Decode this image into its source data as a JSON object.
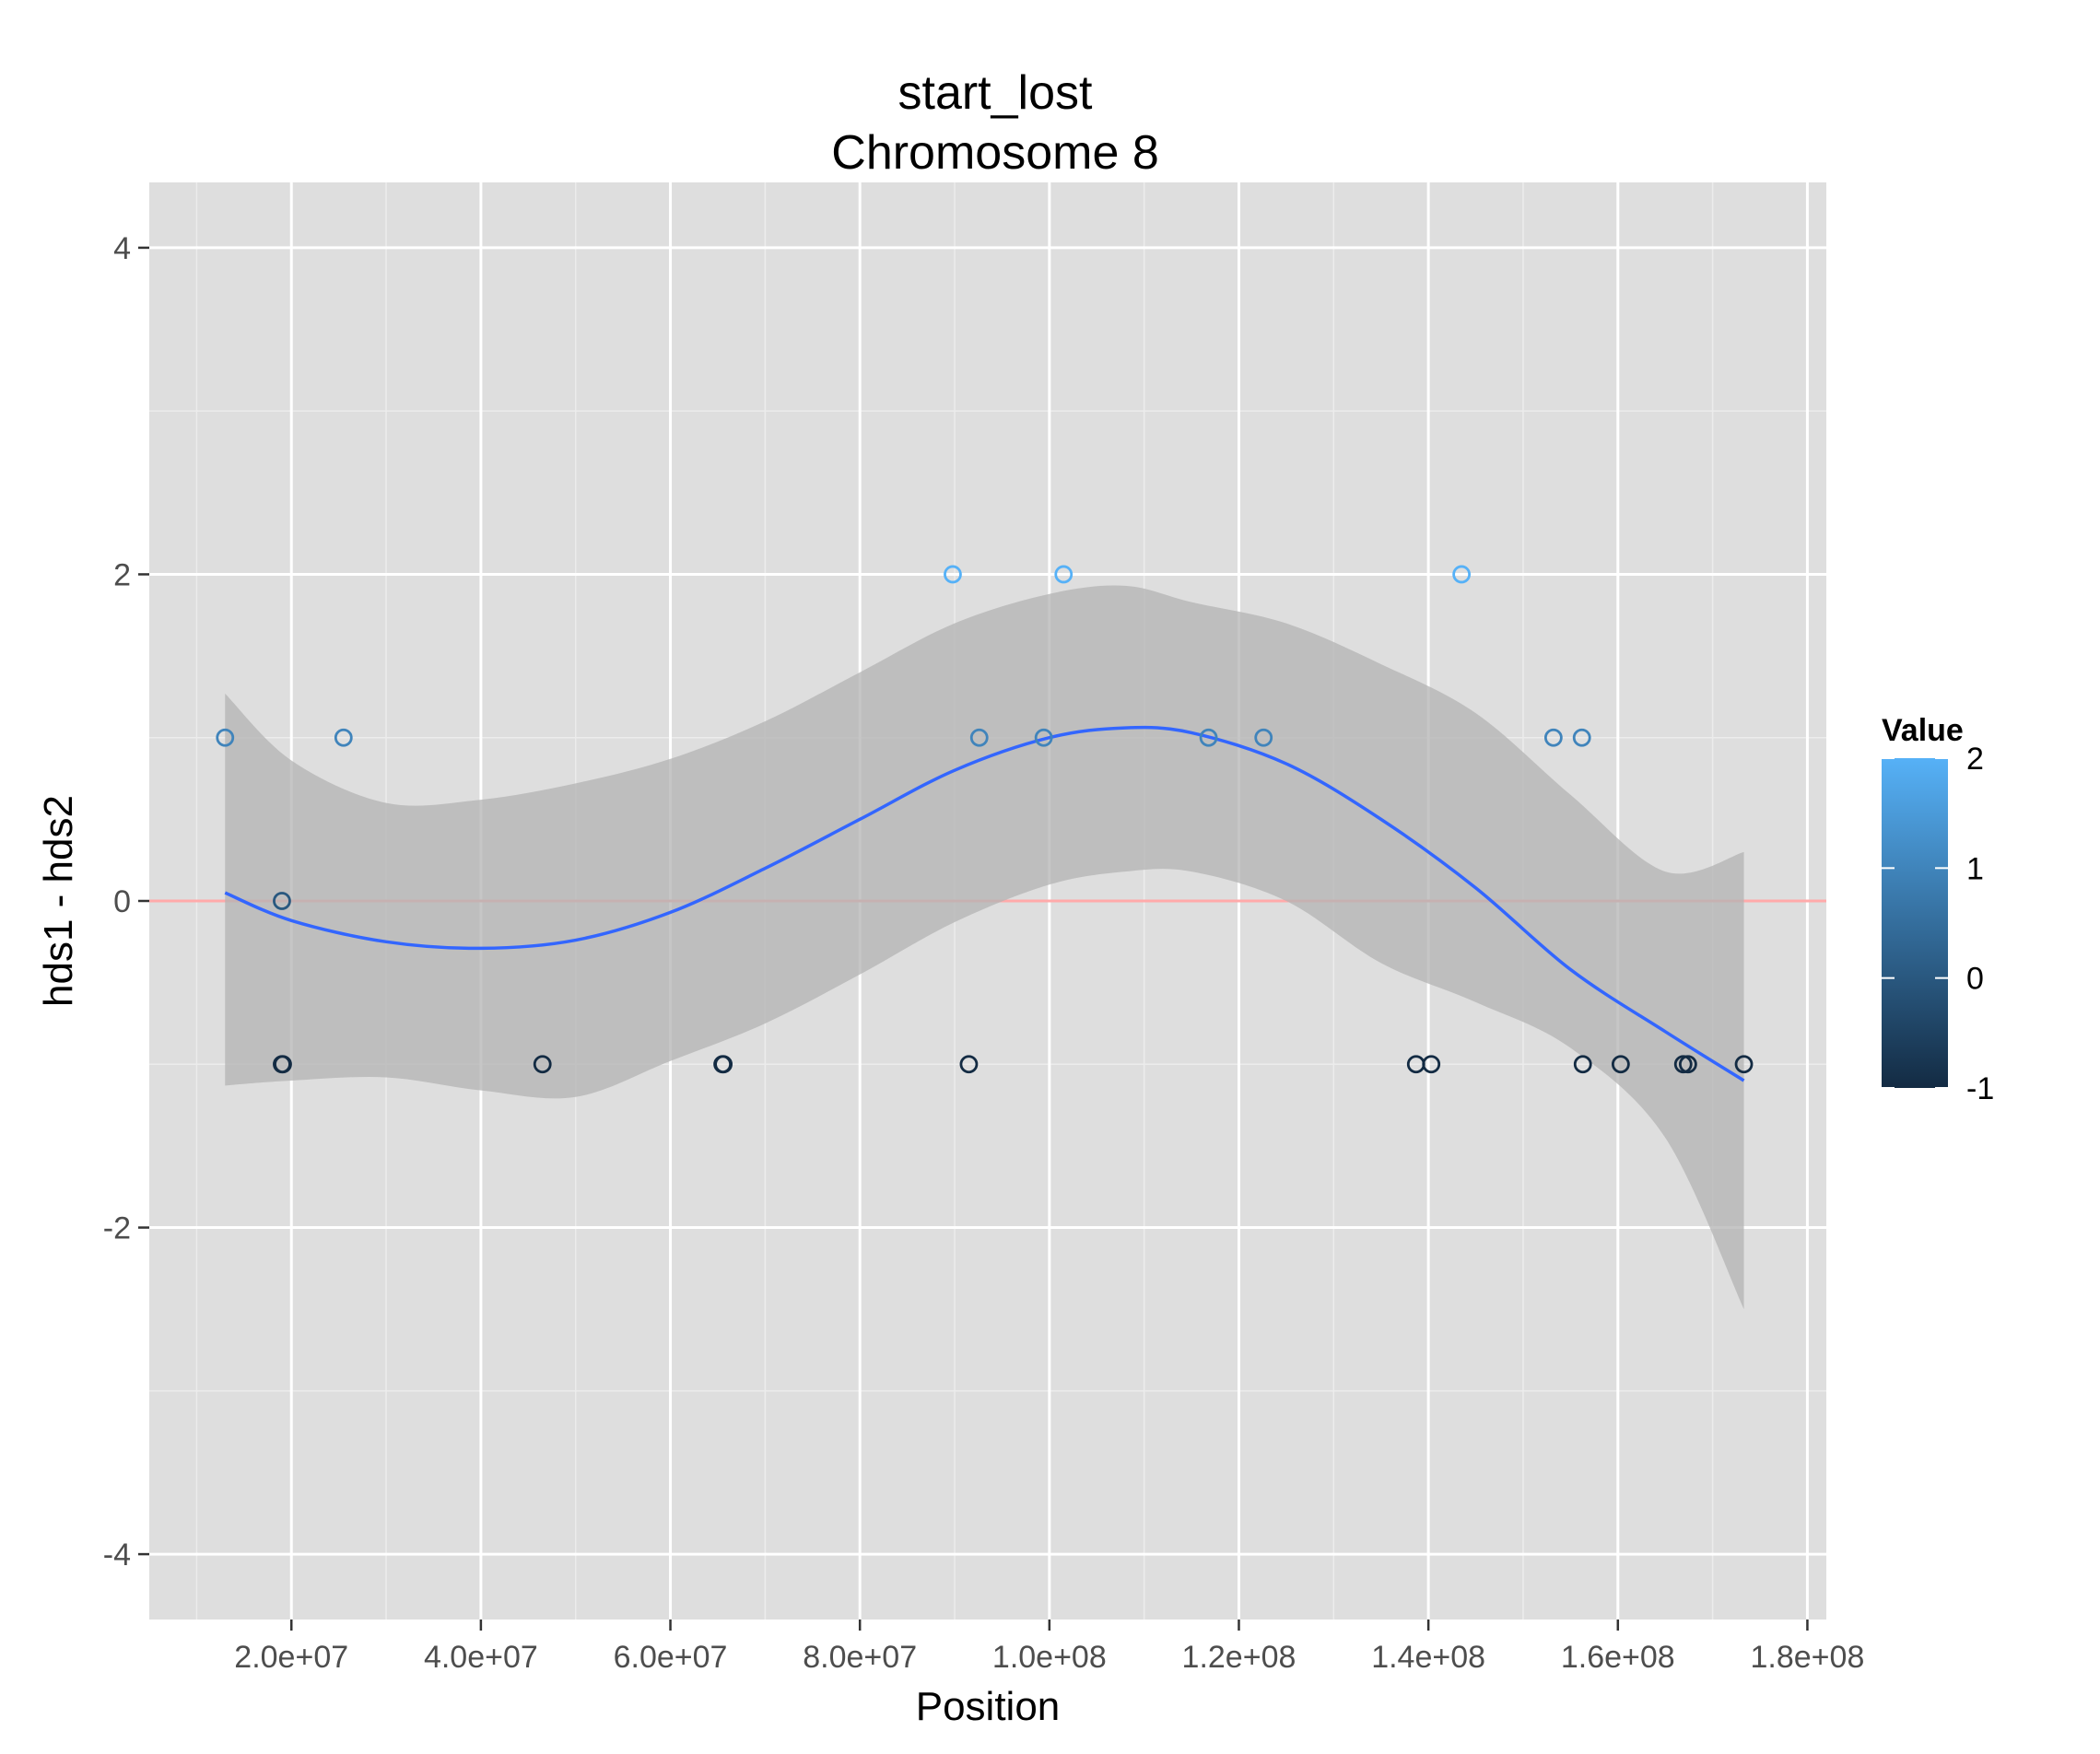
{
  "chart_data": {
    "type": "scatter",
    "title": "start_lost",
    "subtitle": "Chromosome 8",
    "xlabel": "Position",
    "ylabel": "hds1 - hds2",
    "xlim": [
      5000000,
      182000000
    ],
    "ylim": [
      -4.4,
      4.4
    ],
    "x_ticks": [
      20000000,
      40000000,
      60000000,
      80000000,
      100000000,
      120000000,
      140000000,
      160000000,
      180000000
    ],
    "x_tick_labels": [
      "2.0e+07",
      "4.0e+07",
      "6.0e+07",
      "8.0e+07",
      "1.0e+08",
      "1.2e+08",
      "1.4e+08",
      "1.6e+08",
      "1.8e+08"
    ],
    "y_ticks": [
      -4,
      -2,
      0,
      2,
      4
    ],
    "y_tick_labels": [
      "-4",
      "-2",
      "0",
      "2",
      "4"
    ],
    "grid": true,
    "panel_background": "#dedede",
    "reference_line": {
      "y": 0,
      "color": "#ffaaaa"
    },
    "points": [
      {
        "x": 13000000,
        "y": 1
      },
      {
        "x": 19000000,
        "y": 0
      },
      {
        "x": 19000000,
        "y": -1
      },
      {
        "x": 19100000,
        "y": -1
      },
      {
        "x": 25500000,
        "y": 1
      },
      {
        "x": 46500000,
        "y": -1
      },
      {
        "x": 65500000,
        "y": -1
      },
      {
        "x": 65600000,
        "y": -1
      },
      {
        "x": 89800000,
        "y": 2
      },
      {
        "x": 91500000,
        "y": -1
      },
      {
        "x": 92600000,
        "y": 1
      },
      {
        "x": 99400000,
        "y": 1
      },
      {
        "x": 101500000,
        "y": 2
      },
      {
        "x": 116800000,
        "y": 1
      },
      {
        "x": 122600000,
        "y": 1
      },
      {
        "x": 138700000,
        "y": -1
      },
      {
        "x": 140300000,
        "y": -1
      },
      {
        "x": 143500000,
        "y": 2
      },
      {
        "x": 153200000,
        "y": 1
      },
      {
        "x": 156200000,
        "y": 1
      },
      {
        "x": 156300000,
        "y": -1
      },
      {
        "x": 160300000,
        "y": -1
      },
      {
        "x": 166900000,
        "y": -1
      },
      {
        "x": 167400000,
        "y": -1
      },
      {
        "x": 173300000,
        "y": -1
      }
    ],
    "smooth": {
      "color": "#3366ff",
      "ribbon_color": "#b3b3b3",
      "x": [
        13000000,
        20000000,
        30000000,
        40000000,
        50000000,
        60000000,
        70000000,
        80000000,
        90000000,
        100000000,
        108000000,
        115000000,
        125000000,
        135000000,
        145000000,
        155000000,
        165000000,
        173300000
      ],
      "y": [
        0.05,
        -0.12,
        -0.25,
        -0.29,
        -0.24,
        -0.07,
        0.2,
        0.5,
        0.8,
        1.0,
        1.06,
        1.03,
        0.84,
        0.5,
        0.08,
        -0.42,
        -0.8,
        -1.1
      ],
      "lower": [
        -1.13,
        -1.1,
        -1.08,
        -1.16,
        -1.2,
        -0.98,
        -0.75,
        -0.45,
        -0.13,
        0.1,
        0.18,
        0.18,
        0.0,
        -0.38,
        -0.62,
        -0.9,
        -1.45,
        -2.5
      ],
      "upper": [
        1.27,
        0.86,
        0.6,
        0.62,
        0.72,
        0.87,
        1.1,
        1.4,
        1.7,
        1.88,
        1.93,
        1.83,
        1.7,
        1.45,
        1.15,
        0.65,
        0.18,
        0.3
      ]
    },
    "legend": {
      "title": "Value",
      "placement": "right",
      "type": "colorbar",
      "min": -1,
      "max": 2,
      "breaks": [
        2,
        1,
        0,
        -1
      ],
      "break_labels": [
        "2",
        "1",
        "0",
        "-1"
      ],
      "low_color": "#132b43",
      "high_color": "#56b1f7"
    }
  }
}
